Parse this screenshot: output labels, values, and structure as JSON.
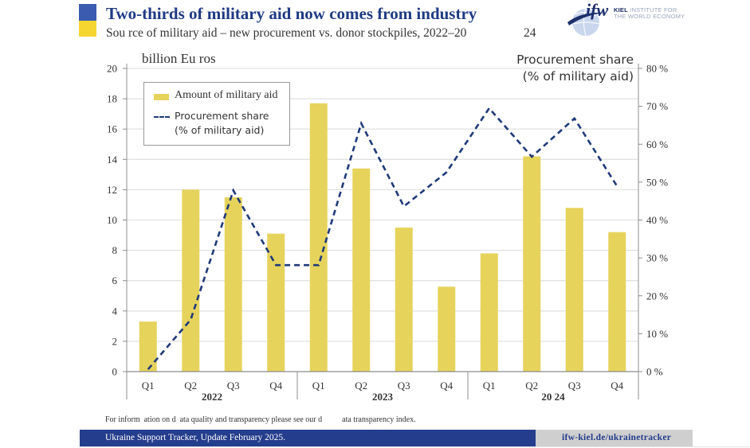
{
  "header": {
    "title": "Two-thirds of military aid now comes from industry",
    "subtitle": "Sou rce  of military aid – new procurement vs. donor stockpiles, 2022–20",
    "subtitle_tail": "24",
    "logo_mark": "ifw",
    "logo_line1_bold": "KIEL",
    "logo_line1_rest": " INSTITUTE FOR",
    "logo_line2": "THE WORLD ECONOMY",
    "flag_colors": {
      "top": "#3a5bb0",
      "bottom": "#f5d530"
    }
  },
  "chart_data": {
    "type": "bar",
    "title": "Two-thirds of military aid now comes from industry",
    "subtitle": "Source of military aid – new procurement vs. donor stockpiles, 2022–2024",
    "categories": [
      "Q1",
      "Q2",
      "Q3",
      "Q4",
      "Q1",
      "Q2",
      "Q3",
      "Q4",
      "Q1",
      "Q2",
      "Q3",
      "Q4"
    ],
    "groups": [
      {
        "label": "2022",
        "span": 4
      },
      {
        "label": "2023",
        "span": 4
      },
      {
        "label": "20 24",
        "span": 4
      }
    ],
    "series": [
      {
        "name": "Amount of military aid",
        "type": "bar",
        "axis": "left",
        "color": "#e6d35c",
        "values": [
          3.3,
          12.0,
          11.5,
          9.1,
          17.7,
          13.4,
          9.5,
          5.6,
          7.8,
          14.2,
          10.8,
          9.2
        ]
      },
      {
        "name": "Procurement share\n(% of military aid)",
        "type": "line",
        "style": "dashed",
        "axis": "right",
        "color": "#1f3a7a",
        "values": [
          0.6,
          13.7,
          47.8,
          28.1,
          28.1,
          65.5,
          43.6,
          52.6,
          69.5,
          56.7,
          66.8,
          48.9
        ]
      }
    ],
    "ylabel": "billion Eu ros",
    "ylabel_right_line1": "Procurement share",
    "ylabel_right_line2": "(% of military aid)",
    "ylim": [
      0,
      20
    ],
    "yticks": [
      "0",
      "2",
      "4",
      "6",
      "8",
      "10",
      "12",
      "14",
      "16",
      "18",
      "20"
    ],
    "ylim_right": [
      0,
      80
    ],
    "yticks_right": [
      "0 %",
      "10 %",
      "20 %",
      "30 %",
      "40 %",
      "50 %",
      "60 %",
      "70 %",
      "80 %"
    ],
    "grid": true,
    "legend": {
      "placement": "top-left",
      "items": [
        "Amount of military aid",
        "Procurement share",
        "(% of military aid)"
      ]
    }
  },
  "note": "For inform  ation on d  ata quality and transparency please see our d          ata transparency index.",
  "footer": {
    "left": "Ukraine Support Tracker, Update February 2025.",
    "right": "ifw-kiel.de/ukrainetracker",
    "colors": {
      "blue": "#243d8c",
      "gray": "#cfcfcf"
    }
  }
}
